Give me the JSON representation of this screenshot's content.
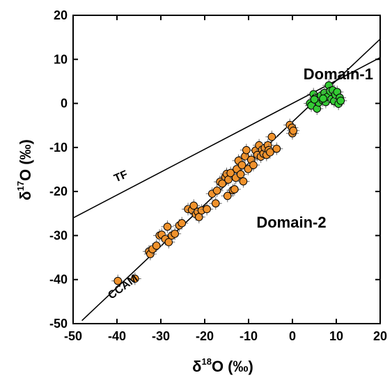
{
  "chart_data": {
    "type": "scatter",
    "xlabel": {
      "prefix": "δ",
      "sup": "18",
      "suffix": "O (‰)"
    },
    "ylabel": {
      "prefix": "δ",
      "sup": "17",
      "suffix": "O (‰)"
    },
    "xlim": [
      -50,
      20
    ],
    "ylim": [
      -50,
      20
    ],
    "xticks": [
      -50,
      -40,
      -30,
      -20,
      -10,
      0,
      10,
      20
    ],
    "yticks": [
      -50,
      -40,
      -30,
      -20,
      -10,
      0,
      10,
      20
    ],
    "xtick_labels": [
      "-50",
      "-40",
      "-30",
      "-20",
      "-10",
      "0",
      "10",
      "20"
    ],
    "ytick_labels": [
      "-50",
      "-40",
      "-30",
      "-20",
      "-10",
      "0",
      "10",
      "20"
    ],
    "grid": false,
    "lines": [
      {
        "name": "TF",
        "slope": 0.52,
        "intercept": 0,
        "x_range": [
          -50,
          20
        ]
      },
      {
        "name": "CCAM",
        "slope": 0.94,
        "intercept": -4.2,
        "x_range": [
          -48,
          20
        ]
      }
    ],
    "annotations": [
      {
        "text": "Domain-1",
        "x": 2.5,
        "y": 5.5
      },
      {
        "text": "Domain-2",
        "x": -8.2,
        "y": -28.2
      },
      {
        "text": "TF",
        "x": -38.8,
        "y": -17.3,
        "rotate": -23
      },
      {
        "text": "CCAM",
        "x": -38.2,
        "y": -42.3,
        "rotate": -36
      }
    ],
    "series": [
      {
        "name": "Domain-1",
        "color": "#33cc33",
        "points": [
          [
            4.0,
            0.0
          ],
          [
            4.3,
            -0.5
          ],
          [
            4.8,
            2.1
          ],
          [
            5.2,
            1.2
          ],
          [
            5.6,
            -1.2
          ],
          [
            6.0,
            0.2
          ],
          [
            6.5,
            1.8
          ],
          [
            6.9,
            0.7
          ],
          [
            7.3,
            2.4
          ],
          [
            7.6,
            0.3
          ],
          [
            8.0,
            1.5
          ],
          [
            8.3,
            4.1
          ],
          [
            8.6,
            2.8
          ],
          [
            8.9,
            1.0
          ],
          [
            9.2,
            3.0
          ],
          [
            9.5,
            0.5
          ],
          [
            9.8,
            2.0
          ],
          [
            10.2,
            2.6
          ],
          [
            10.5,
            -0.1
          ],
          [
            10.8,
            1.3
          ],
          [
            11.0,
            0.6
          ],
          [
            5.0,
            0.9
          ],
          [
            7.0,
            1.1
          ]
        ]
      },
      {
        "name": "Domain-2",
        "color": "#f0922c",
        "points": [
          [
            -39.8,
            -40.3
          ],
          [
            -35.9,
            -39.8
          ],
          [
            -32.7,
            -33.6
          ],
          [
            -32.4,
            -34.2
          ],
          [
            -31.9,
            -33.1
          ],
          [
            -31.0,
            -32.3
          ],
          [
            -30.3,
            -30.0
          ],
          [
            -29.8,
            -29.8
          ],
          [
            -29.0,
            -30.8
          ],
          [
            -28.5,
            -28.0
          ],
          [
            -28.2,
            -31.5
          ],
          [
            -27.5,
            -30.0
          ],
          [
            -26.8,
            -29.6
          ],
          [
            -25.8,
            -27.7
          ],
          [
            -25.2,
            -27.2
          ],
          [
            -23.8,
            -24.0
          ],
          [
            -22.9,
            -24.2
          ],
          [
            -22.5,
            -23.2
          ],
          [
            -22.0,
            -25.2
          ],
          [
            -21.6,
            -24.6
          ],
          [
            -21.3,
            -25.8
          ],
          [
            -20.7,
            -24.3
          ],
          [
            -19.5,
            -24.0
          ],
          [
            -18.3,
            -20.5
          ],
          [
            -17.5,
            -22.7
          ],
          [
            -17.2,
            -19.8
          ],
          [
            -16.5,
            -17.8
          ],
          [
            -16.0,
            -18.2
          ],
          [
            -15.3,
            -16.7
          ],
          [
            -15.0,
            -16.0
          ],
          [
            -14.8,
            -21.0
          ],
          [
            -14.6,
            -17.3
          ],
          [
            -14.1,
            -15.8
          ],
          [
            -13.6,
            -19.7
          ],
          [
            -13.2,
            -19.5
          ],
          [
            -12.9,
            -16.9
          ],
          [
            -12.7,
            -14.9
          ],
          [
            -12.3,
            -13.0
          ],
          [
            -11.8,
            -16.1
          ],
          [
            -11.5,
            -14.0
          ],
          [
            -11.2,
            -17.7
          ],
          [
            -10.8,
            -12.0
          ],
          [
            -10.5,
            -10.6
          ],
          [
            -10.1,
            -14.9
          ],
          [
            -9.4,
            -12.8
          ],
          [
            -8.9,
            -14.0
          ],
          [
            -8.4,
            -10.7
          ],
          [
            -8.0,
            -11.7
          ],
          [
            -7.6,
            -9.5
          ],
          [
            -7.2,
            -12.1
          ],
          [
            -6.9,
            -10.5
          ],
          [
            -6.6,
            -11.4
          ],
          [
            -6.3,
            -10.1
          ],
          [
            -5.9,
            -11.7
          ],
          [
            -5.6,
            -9.5
          ],
          [
            -5.4,
            -10.6
          ],
          [
            -5.1,
            -11.1
          ],
          [
            -4.7,
            -7.6
          ],
          [
            -3.6,
            -10.3
          ],
          [
            -0.6,
            -4.9
          ],
          [
            -0.1,
            -5.5
          ],
          [
            0.0,
            -6.8
          ],
          [
            0.2,
            -6.2
          ]
        ]
      }
    ]
  }
}
